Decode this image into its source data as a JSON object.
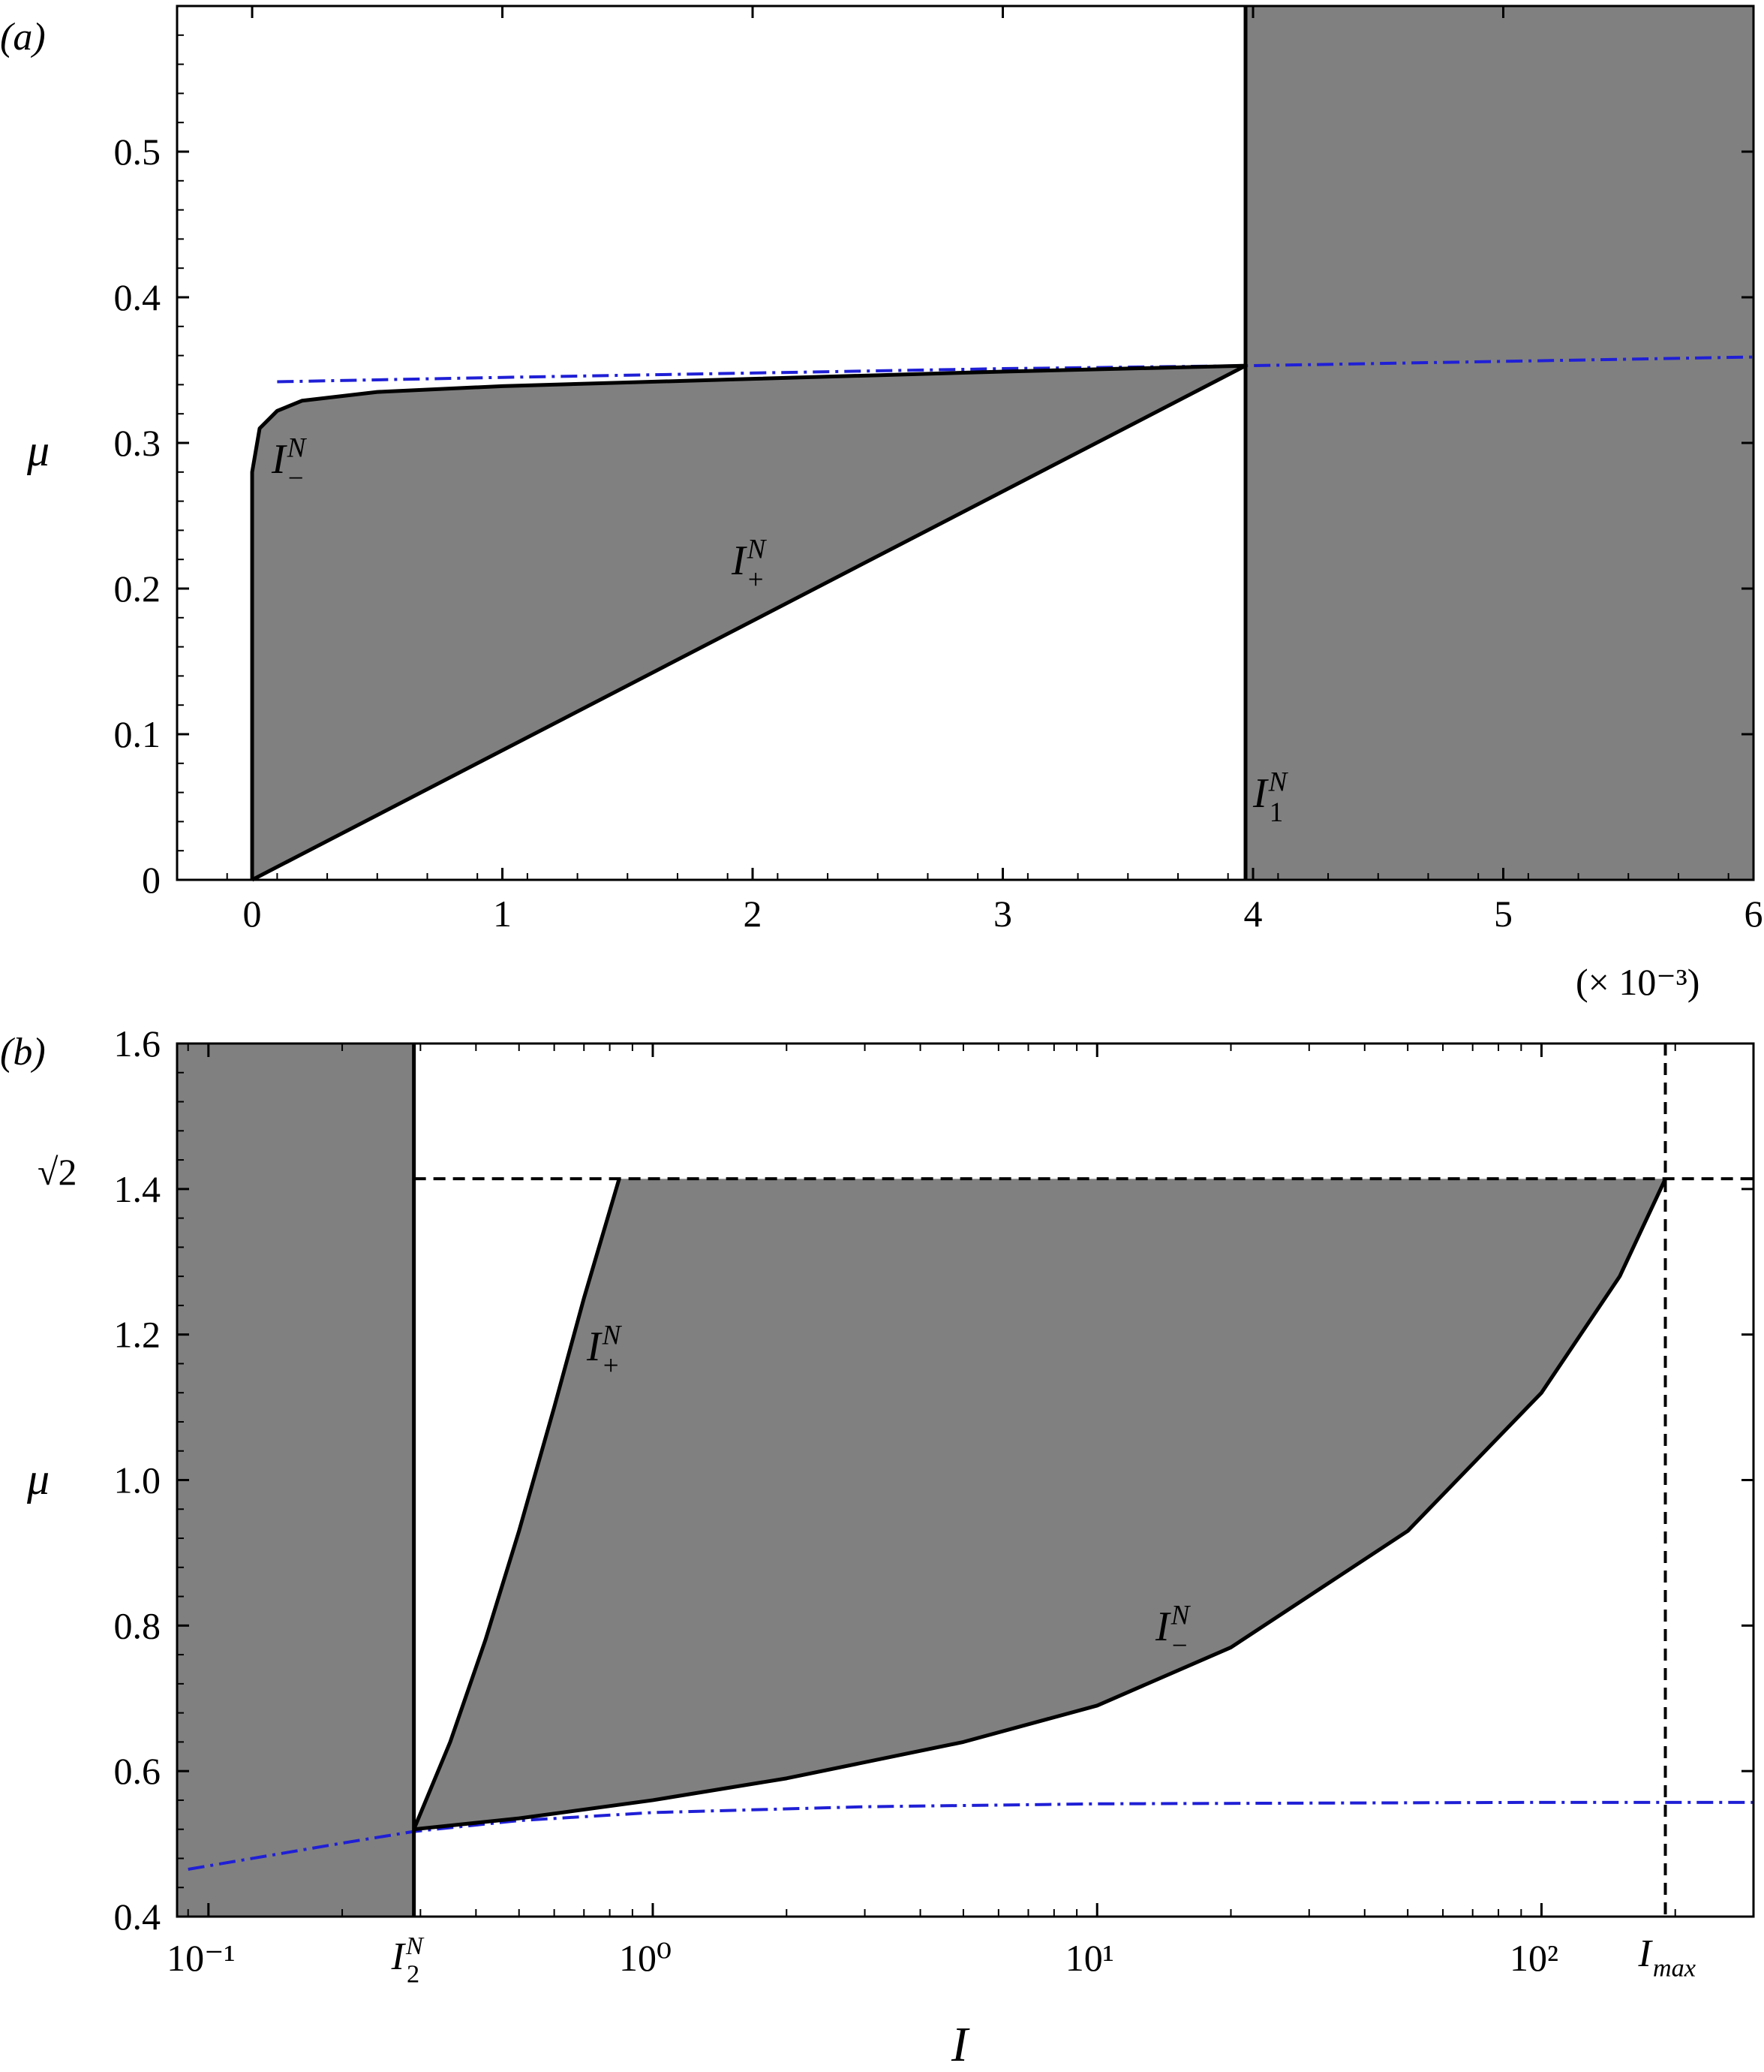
{
  "chart_data": [
    {
      "panel_label": "(a)",
      "type": "area",
      "x_scale": "linear",
      "xlim": [
        -0.0003,
        0.006
      ],
      "ylim": [
        0,
        0.6
      ],
      "x_ticks": [
        0,
        0.001,
        0.002,
        0.003,
        0.004,
        0.005,
        0.006
      ],
      "x_tick_labels": [
        "0",
        "1",
        "2",
        "3",
        "4",
        "5",
        "6"
      ],
      "x_multiplier_label": "(× 10⁻³)",
      "y_ticks": [
        0,
        0.1,
        0.2,
        0.3,
        0.4,
        0.5
      ],
      "y_tick_labels": [
        "0",
        "0.1",
        "0.2",
        "0.3",
        "0.4",
        "0.5"
      ],
      "ylabel": "μ",
      "xlabel": "",
      "shaded_region_right_from_x": 0.00397,
      "vertical_line_x": 0.00397,
      "series": [
        {
          "name": "I_−^N",
          "label_base": "I",
          "label_sup": "N",
          "label_sub": "−",
          "style": "solid-black",
          "x": [
            0,
            0,
            3e-05,
            0.0001,
            0.0002,
            0.0005,
            0.001,
            0.002,
            0.003,
            0.00397
          ],
          "y": [
            0,
            0.28,
            0.31,
            0.322,
            0.329,
            0.335,
            0.339,
            0.344,
            0.349,
            0.353
          ]
        },
        {
          "name": "I_+^N",
          "label_base": "I",
          "label_sup": "N",
          "label_sub": "+",
          "style": "solid-black",
          "x": [
            0,
            0.00397
          ],
          "y": [
            0,
            0.353
          ]
        },
        {
          "name": "I_1^N",
          "label_base": "I",
          "label_sup": "N",
          "label_sub": "1",
          "style": "solid-black-vertical",
          "x": [
            0.00397,
            0.00397
          ],
          "y": [
            0,
            0.6
          ]
        },
        {
          "name": "",
          "style": "blue-dashdot",
          "x": [
            0.0001,
            0.001,
            0.002,
            0.003,
            0.00397,
            0.005,
            0.006
          ],
          "y": [
            0.342,
            0.345,
            0.348,
            0.351,
            0.353,
            0.356,
            0.359
          ]
        }
      ]
    },
    {
      "panel_label": "(b)",
      "type": "area",
      "x_scale": "log",
      "xlim": [
        0.085,
        300
      ],
      "ylim": [
        0.4,
        1.6
      ],
      "x_tick_labels": [
        "10⁻¹",
        "10⁰",
        "10¹",
        "10²"
      ],
      "x_tick_values": [
        0.1,
        1,
        10,
        100
      ],
      "x_special_ticks": [
        {
          "value": 0.29,
          "label_base": "I",
          "label_sup": "N",
          "label_sub": "2"
        },
        {
          "value": 190,
          "label_base": "I",
          "label_sub": "max"
        }
      ],
      "y_ticks": [
        0.4,
        0.6,
        0.8,
        1.0,
        1.2,
        1.4,
        1.6
      ],
      "y_tick_labels": [
        "0.4",
        "0.6",
        "0.8",
        "1.0",
        "1.2",
        "1.4",
        "1.6"
      ],
      "y_special_tick": {
        "value": 1.4142,
        "label": "√2"
      },
      "ylabel": "μ",
      "xlabel": "I",
      "shaded_region_left_to_x": 0.29,
      "horizontal_dashed_y": 1.4142,
      "vertical_dashed_x": 190,
      "series": [
        {
          "name": "I_+^N",
          "label_base": "I",
          "label_sup": "N",
          "label_sub": "+",
          "style": "solid-black",
          "x": [
            0.29,
            0.35,
            0.42,
            0.5,
            0.6,
            0.7,
            0.8,
            0.84
          ],
          "y": [
            0.52,
            0.64,
            0.78,
            0.93,
            1.1,
            1.25,
            1.37,
            1.414
          ]
        },
        {
          "name": "I_−^N",
          "label_base": "I",
          "label_sup": "N",
          "label_sub": "−",
          "style": "solid-black",
          "x": [
            0.29,
            0.5,
            1,
            2,
            5,
            10,
            20,
            50,
            100,
            150,
            190
          ],
          "y": [
            0.52,
            0.535,
            0.56,
            0.59,
            0.64,
            0.69,
            0.77,
            0.93,
            1.12,
            1.28,
            1.414
          ]
        },
        {
          "name": "I_2^N",
          "style": "solid-black-vertical",
          "x": [
            0.29,
            0.29
          ],
          "y": [
            0.4,
            1.6
          ]
        },
        {
          "name": "",
          "style": "blue-dashdot",
          "x": [
            0.09,
            0.12,
            0.15,
            0.2,
            0.29,
            0.5,
            1,
            3,
            10,
            30,
            100,
            300
          ],
          "y": [
            0.465,
            0.478,
            0.488,
            0.501,
            0.517,
            0.532,
            0.543,
            0.551,
            0.555,
            0.556,
            0.557,
            0.557
          ]
        }
      ]
    }
  ]
}
